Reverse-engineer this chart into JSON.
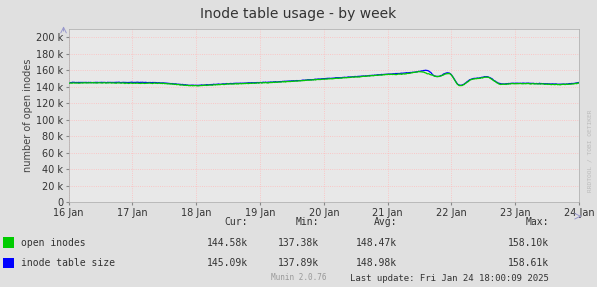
{
  "title": "Inode table usage - by week",
  "ylabel": "number of open inodes",
  "background_color": "#e0e0e0",
  "plot_bg_color": "#e8e8e8",
  "grid_color_minor": "#ffbbbb",
  "grid_color_major": "#ffbbbb",
  "ylim": [
    0,
    210000
  ],
  "yticks": [
    0,
    20000,
    40000,
    60000,
    80000,
    100000,
    120000,
    140000,
    160000,
    180000,
    200000
  ],
  "ytick_labels": [
    "0",
    "20 k",
    "40 k",
    "60 k",
    "80 k",
    "100 k",
    "120 k",
    "140 k",
    "160 k",
    "180 k",
    "200 k"
  ],
  "xtick_labels": [
    "16 Jan",
    "17 Jan",
    "18 Jan",
    "19 Jan",
    "20 Jan",
    "21 Jan",
    "22 Jan",
    "23 Jan",
    "24 Jan"
  ],
  "open_inodes_color": "#00cc00",
  "inode_table_color": "#0000ff",
  "legend_labels": [
    "open inodes",
    "inode table size"
  ],
  "cur_label": "Cur:",
  "min_label": "Min:",
  "avg_label": "Avg:",
  "max_label": "Max:",
  "open_inodes_stats": {
    "cur": "144.58k",
    "min": "137.38k",
    "avg": "148.47k",
    "max": "158.10k"
  },
  "inode_table_stats": {
    "cur": "145.09k",
    "min": "137.89k",
    "avg": "148.98k",
    "max": "158.61k"
  },
  "last_update": "Last update: Fri Jan 24 18:00:09 2025",
  "munin_version": "Munin 2.0.76",
  "watermark": "RRDTOOL / TOBI OETIKER",
  "title_fontsize": 10,
  "axis_fontsize": 7,
  "legend_fontsize": 7,
  "stats_fontsize": 7
}
